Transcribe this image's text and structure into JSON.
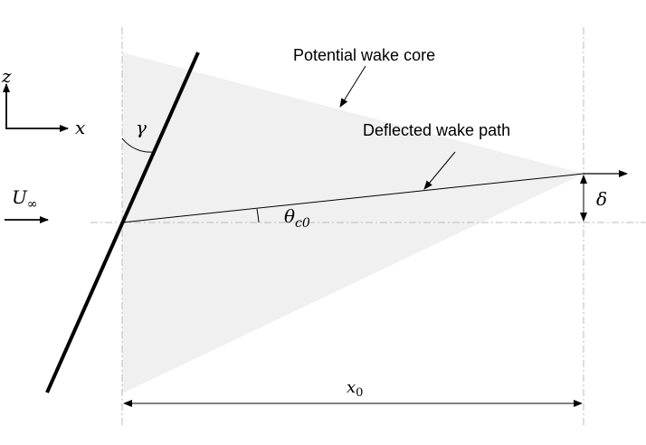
{
  "labels": {
    "potential_wake_core": "Potential wake core",
    "deflected_wake_path": "Deflected wake path",
    "axis_z": "z",
    "axis_x": "x",
    "freestream": "U",
    "freestream_sub": "∞",
    "gamma": "γ",
    "theta": "θ",
    "theta_sub": "c0",
    "delta": "δ",
    "x0": "x",
    "x0_sub": "0"
  },
  "colors": {
    "wake_fill": "#f0f0f0",
    "line": "#000000",
    "dashed": "#bbbbbb"
  }
}
